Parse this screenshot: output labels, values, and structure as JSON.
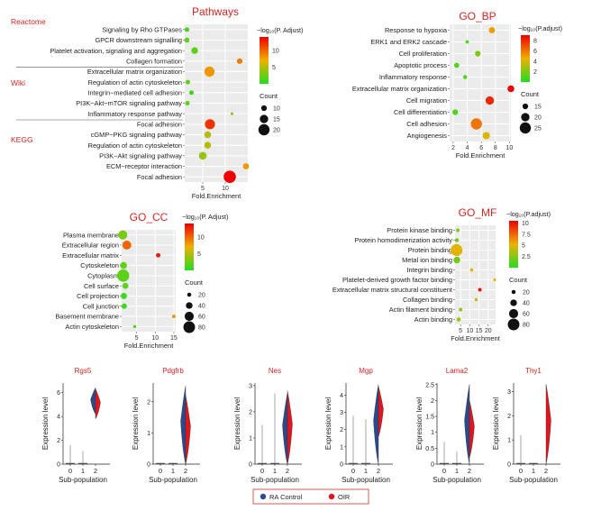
{
  "colors": {
    "low": "#22dd22",
    "mid": "#f0b000",
    "high": "#ee0000",
    "red_title": "#dd2222",
    "ra": "#2b4a8e",
    "oir": "#e3141b"
  },
  "chart_data": [
    {
      "type": "scatter",
      "id": "pathways",
      "title": "Pathways",
      "xlabel": "Fold.Enrichment",
      "xlim": [
        1,
        15
      ],
      "xticks": [
        5,
        10
      ],
      "legend_color_title": "−log₁₀(P. Adjust)",
      "color_ticks": [
        5,
        10
      ],
      "color_range": [
        0,
        14
      ],
      "legend_size_title": "Count",
      "size_ticks": [
        10,
        15,
        20
      ],
      "size_range": [
        5,
        22
      ],
      "groups": [
        {
          "name": "Reactome",
          "rows": 4
        },
        {
          "name": "Wiki",
          "rows": 5
        },
        {
          "name": "KEGG",
          "rows": 6
        }
      ],
      "terms": [
        "Signaling by Rho GTPases",
        "GPCR downstream signalling",
        "Platelet activation, signaling and aggregation",
        "Collagen formation",
        "Extracellular matrix organization",
        "Regulation of actin cytoskeleton",
        "Integrin−mediated cell adhesion",
        "PI3K−Akt−mTOR signaling pathway",
        "Inflammatory response pathway",
        "Focal adhesion",
        "cGMP−PKG signaling pathway",
        "Regulation of actin cytoskeleton",
        "PI3K−Akt signaling pathway",
        "ECM−receptor interaction",
        "Focal adhesion"
      ],
      "x": [
        1.5,
        1.5,
        3.2,
        13.2,
        6.5,
        1.7,
        2.5,
        1.6,
        11.5,
        6.6,
        6.1,
        6.1,
        5.0,
        14.6,
        11.0
      ],
      "size": [
        8,
        9,
        12,
        10,
        18,
        8,
        8,
        8,
        5,
        18,
        12,
        12,
        14,
        11,
        22
      ],
      "color": [
        1,
        2,
        2,
        9,
        8,
        2,
        1,
        2,
        4,
        12,
        5,
        5,
        4,
        8,
        14
      ]
    },
    {
      "type": "scatter",
      "id": "go_bp",
      "title": "GO_BP",
      "xlabel": "Fold.Enrichment",
      "xlim": [
        1.5,
        10.2
      ],
      "xticks": [
        2,
        4,
        6,
        8,
        10
      ],
      "legend_color_title": "−log₁₀(P.adjust)",
      "color_ticks": [
        2,
        4,
        6,
        8
      ],
      "color_range": [
        0,
        9
      ],
      "legend_size_title": "Count",
      "size_ticks": [
        15,
        20,
        25
      ],
      "size_range": [
        10,
        27
      ],
      "terms": [
        "Response to hypoxia",
        "ERK1 and ERK2 cascade",
        "Cell proliferation",
        "Apoptotic process",
        "Inflammatory response",
        "Extracellular matrix organization",
        "Cell migration",
        "Cell differentiation",
        "Cell adhesion",
        "Angiogenesis"
      ],
      "x": [
        7.5,
        4.0,
        5.5,
        2.5,
        3.7,
        10.2,
        7.2,
        2.3,
        5.3,
        6.7
      ],
      "size": [
        16,
        11,
        15,
        14,
        12,
        17,
        20,
        15,
        25,
        18
      ],
      "color": [
        5,
        1,
        2,
        1,
        1,
        9,
        8,
        1,
        6,
        4
      ]
    },
    {
      "type": "scatter",
      "id": "go_cc",
      "title": "GO_CC",
      "xlabel": "Fold.Enrichment",
      "xlim": [
        1,
        15.5
      ],
      "xticks": [
        5,
        10,
        15
      ],
      "legend_color_title": "−log₁₀(P. Adjust)",
      "color_ticks": [
        5,
        10
      ],
      "color_range": [
        0,
        14
      ],
      "legend_size_title": "Count",
      "size_ticks": [
        20,
        40,
        60,
        80
      ],
      "size_range": [
        10,
        85
      ],
      "terms": [
        "Plasma membrane",
        "Extracellular region",
        "Extracellular matrix",
        "Cytoskeleton",
        "Cytoplasm",
        "Cell surface",
        "Cell projection",
        "Cell junction",
        "Basement membrane",
        "Actin cytoskeleton"
      ],
      "x": [
        1.3,
        2.4,
        10.8,
        1.5,
        1.4,
        2.0,
        1.6,
        1.7,
        15.0,
        4.5
      ],
      "size": [
        60,
        58,
        22,
        42,
        85,
        35,
        36,
        30,
        15,
        12
      ],
      "color": [
        3,
        10,
        13,
        2,
        2,
        2,
        1,
        1,
        8,
        2
      ]
    },
    {
      "type": "scatter",
      "id": "go_mf",
      "title": "GO_MF",
      "xlabel": "Fold.Enrichment",
      "xlim": [
        2,
        24
      ],
      "xticks": [
        5,
        10,
        15,
        20
      ],
      "legend_color_title": "−log₁₀(P.adjust)",
      "color_ticks": [
        2.5,
        5.0,
        7.5,
        10.0
      ],
      "color_range": [
        0,
        10.5
      ],
      "legend_size_title": "Count",
      "size_ticks": [
        20,
        40,
        60,
        80
      ],
      "size_range": [
        10,
        85
      ],
      "terms": [
        "Protein kinase binding",
        "Protein homodimerization activity",
        "Protein binding",
        "Metal ion binding",
        "Integrin binding",
        "Platelet-derived growth factor binding",
        "Extracellular matrix structural constituent",
        "Collagen binding",
        "Actin filament binding",
        "Actin binding"
      ],
      "x": [
        3.5,
        3.0,
        2.8,
        3.0,
        11.0,
        23.5,
        15.5,
        13.5,
        5.0,
        4.0
      ],
      "size": [
        15,
        18,
        82,
        40,
        13,
        10,
        16,
        12,
        15,
        20
      ],
      "color": [
        2,
        2,
        5,
        2,
        5,
        5,
        10,
        4,
        3,
        3
      ]
    },
    {
      "type": "violin",
      "id": "violins",
      "xlabel": "Sub-population",
      "ylabel": "Expression level",
      "categories": [
        "0",
        "1",
        "2"
      ],
      "legend": {
        "ra": "RA Control",
        "oir": "OIR"
      },
      "panels": [
        {
          "gene": "Rgs5",
          "ymax": 6.8,
          "yticks": [
            0,
            2,
            4,
            6
          ],
          "max": [
            1.6,
            1.1,
            6.3
          ],
          "ra2": [
            4.2,
            6.4,
            6.0
          ],
          "oir2": [
            3.8,
            6.3,
            5.2
          ]
        },
        {
          "gene": "Pdgfrb",
          "ymax": 2.6,
          "yticks": [
            0,
            1,
            2
          ],
          "max": [
            0.05,
            0.05,
            2.5
          ],
          "ra2": [
            0,
            2.5,
            1.5
          ],
          "oir2": [
            0,
            2.2,
            1.5
          ]
        },
        {
          "gene": "Nes",
          "ymax": 3.1,
          "yticks": [
            0,
            1,
            2,
            3
          ],
          "max": [
            1.5,
            2.7,
            2.8
          ],
          "ra2": [
            0,
            2.7,
            1.6
          ],
          "oir2": [
            0,
            2.8,
            1.7
          ]
        },
        {
          "gene": "Mgp",
          "ymax": 4.7,
          "yticks": [
            0,
            1,
            2,
            3,
            4
          ],
          "max": [
            2.8,
            2.6,
            4.6
          ],
          "ra2": [
            0,
            4.6,
            3.6
          ],
          "oir2": [
            1.6,
            4.5,
            4.0
          ]
        },
        {
          "gene": "Lama2",
          "ymax": 2.55,
          "yticks": [
            0,
            0.5,
            1.0,
            1.5,
            2.0,
            2.5
          ],
          "max": [
            0.7,
            0.4,
            2.5
          ],
          "ra2": [
            0,
            2.5,
            1.8
          ],
          "oir2": [
            0.2,
            2.0,
            1.0
          ]
        },
        {
          "gene": "Thy1",
          "ymax": 3.35,
          "yticks": [
            0,
            1,
            2,
            3
          ],
          "max": [
            1.2,
            0,
            3.3
          ],
          "ra2": [
            0,
            0,
            0
          ],
          "oir2": [
            0,
            3.3,
            0.9
          ]
        }
      ]
    }
  ]
}
